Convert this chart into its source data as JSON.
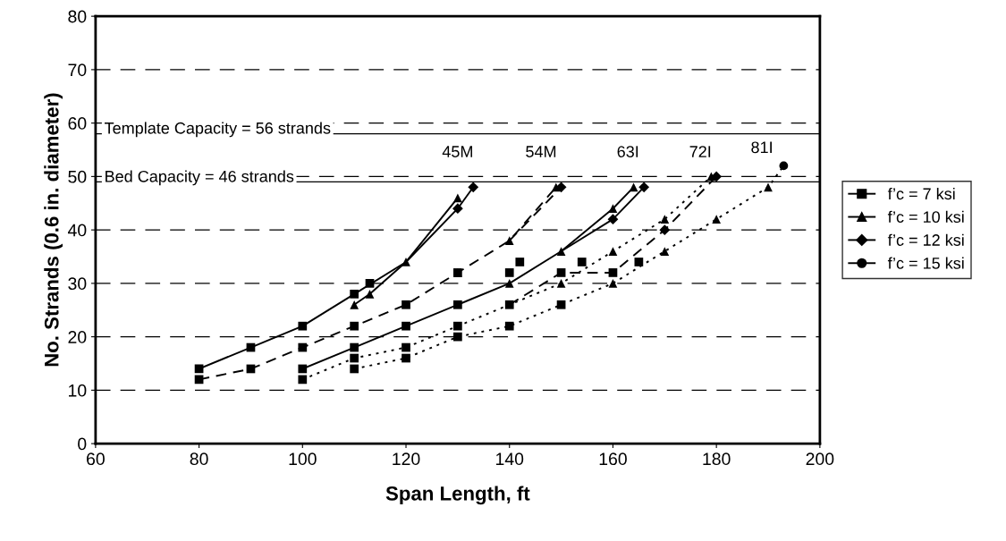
{
  "chart_data": {
    "type": "line",
    "xlabel": "Span Length, ft",
    "ylabel": "No. Strands (0.6 in. diameter)",
    "xlim": [
      60,
      200
    ],
    "xticks": [
      60,
      80,
      100,
      120,
      140,
      160,
      180,
      200
    ],
    "ylim": [
      0,
      80
    ],
    "yticks": [
      0,
      10,
      20,
      30,
      40,
      50,
      60,
      70,
      80
    ],
    "grid": "y",
    "legend": "right",
    "ref_lines": [
      {
        "axis": "y",
        "value": 58,
        "color": "#000000",
        "line_style": "solid"
      },
      {
        "axis": "y",
        "value": 49,
        "color": "#000000",
        "line_style": "solid"
      }
    ],
    "annotations": [
      "Template Capacity = 56 strands",
      "Bed Capacity = 46 strands",
      "45M",
      "54M",
      "63I",
      "72I",
      "81I"
    ],
    "series": [
      {
        "line_style": "solid",
        "marker": "none",
        "color": "#000000",
        "x": [
          80,
          90,
          100,
          110,
          120,
          130
        ],
        "values": [
          14,
          18,
          22,
          28,
          34,
          46
        ]
      },
      {
        "line_style": "solid",
        "marker": "none",
        "color": "#000000",
        "x": [
          110,
          113,
          120,
          130,
          133
        ],
        "values": [
          26,
          28,
          34,
          44,
          48
        ]
      },
      {
        "line_style": "dashed",
        "marker": "none",
        "color": "#000000",
        "x": [
          80,
          90,
          100,
          110,
          120,
          130,
          140,
          149
        ],
        "values": [
          12,
          14,
          18,
          22,
          26,
          32,
          38,
          48
        ]
      },
      {
        "line_style": "dashed",
        "marker": "none",
        "color": "#000000",
        "x": [
          140,
          150
        ],
        "values": [
          38,
          48
        ]
      },
      {
        "line_style": "solid",
        "marker": "none",
        "color": "#000000",
        "x": [
          100,
          110,
          120,
          130,
          140,
          150,
          160,
          164
        ],
        "values": [
          14,
          18,
          22,
          26,
          30,
          36,
          44,
          48
        ]
      },
      {
        "line_style": "solid",
        "marker": "none",
        "color": "#000000",
        "x": [
          150,
          160,
          166
        ],
        "values": [
          36,
          42,
          48
        ]
      },
      {
        "line_style": "dotted",
        "marker": "none",
        "color": "#000000",
        "x": [
          100,
          110,
          120,
          130,
          140,
          150,
          160,
          170,
          179
        ],
        "values": [
          12,
          16,
          18,
          22,
          26,
          30,
          36,
          42,
          50
        ]
      },
      {
        "line_style": "dashed",
        "marker": "none",
        "color": "#000000",
        "x": [
          140,
          150,
          160,
          170,
          180
        ],
        "values": [
          26,
          32,
          32,
          40,
          50
        ]
      },
      {
        "line_style": "dotted",
        "marker": "none",
        "color": "#000000",
        "x": [
          110,
          120,
          130,
          140,
          150,
          160,
          170,
          180,
          190,
          193
        ],
        "values": [
          14,
          16,
          20,
          22,
          26,
          30,
          36,
          42,
          48,
          52
        ]
      },
      {
        "type": "scatter",
        "name": "f’c = 7 ksi",
        "marker": "square",
        "color": "#000000",
        "x": [
          80,
          90,
          100,
          110,
          113,
          80,
          90,
          100,
          110,
          120,
          130,
          100,
          110,
          120,
          130,
          140,
          142,
          100,
          110,
          120,
          130,
          140,
          150,
          154,
          110,
          120,
          130,
          140,
          150,
          160,
          165
        ],
        "values": [
          14,
          18,
          22,
          28,
          30,
          12,
          14,
          18,
          22,
          26,
          32,
          14,
          18,
          22,
          26,
          32,
          34,
          12,
          16,
          18,
          22,
          26,
          32,
          34,
          14,
          16,
          20,
          22,
          26,
          32,
          34
        ]
      },
      {
        "type": "scatter",
        "name": "f’c = 10 ksi",
        "marker": "triangle",
        "color": "#000000",
        "x": [
          110,
          113,
          120,
          130,
          130,
          140,
          149,
          140,
          150,
          160,
          164,
          150,
          160,
          170,
          179,
          160,
          170,
          180,
          190
        ],
        "values": [
          26,
          28,
          34,
          46,
          32,
          38,
          48,
          30,
          36,
          44,
          48,
          30,
          36,
          42,
          50,
          30,
          36,
          42,
          48
        ]
      },
      {
        "type": "scatter",
        "name": "f’c = 12 ksi",
        "marker": "diamond",
        "color": "#000000",
        "x": [
          130,
          133,
          150,
          160,
          166,
          170,
          180
        ],
        "values": [
          44,
          48,
          48,
          42,
          48,
          40,
          50
        ]
      },
      {
        "type": "scatter",
        "name": "f’c = 15 ksi",
        "marker": "circle",
        "color": "#000000",
        "x": [
          193
        ],
        "values": [
          52
        ]
      }
    ]
  }
}
